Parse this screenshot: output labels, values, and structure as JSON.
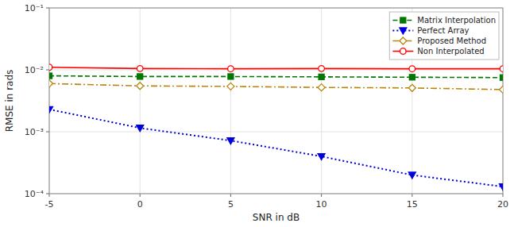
{
  "chart_data": {
    "type": "line",
    "xlabel": "SNR in dB",
    "ylabel": "RMSE in rads",
    "x": [
      -5,
      0,
      5,
      10,
      15,
      20
    ],
    "series": [
      {
        "name": "Matrix Interpolation",
        "color": "#007700",
        "marker": "square",
        "line_style": "dashed",
        "values": [
          0.008,
          0.0078,
          0.0078,
          0.0077,
          0.0076,
          0.0075
        ]
      },
      {
        "name": "Perfect Array",
        "color": "#0000dd",
        "marker": "triangle-down",
        "line_style": "dotted",
        "values": [
          0.0023,
          0.00115,
          0.00072,
          0.0004,
          0.0002,
          0.00013
        ]
      },
      {
        "name": "Proposed Method",
        "color": "#b8860b",
        "marker": "diamond",
        "line_style": "dashdot",
        "values": [
          0.006,
          0.0055,
          0.0054,
          0.0052,
          0.0051,
          0.0048
        ]
      },
      {
        "name": "Non Interpolated",
        "color": "#ff0000",
        "marker": "circle",
        "line_style": "solid",
        "values": [
          0.011,
          0.0105,
          0.0104,
          0.0105,
          0.0104,
          0.0104
        ]
      }
    ],
    "xlim": [
      -5,
      20
    ],
    "xticks": [
      -5,
      0,
      5,
      10,
      15,
      20
    ],
    "ylim": [
      0.0001,
      0.1
    ],
    "yticks": [
      {
        "value": 0.0001,
        "label": "10⁻⁴"
      },
      {
        "value": 0.001,
        "label": "10⁻³"
      },
      {
        "value": 0.01,
        "label": "10⁻²"
      },
      {
        "value": 0.1,
        "label": "10⁻¹"
      }
    ],
    "log": "y",
    "grid": true,
    "legend": "upper right"
  }
}
